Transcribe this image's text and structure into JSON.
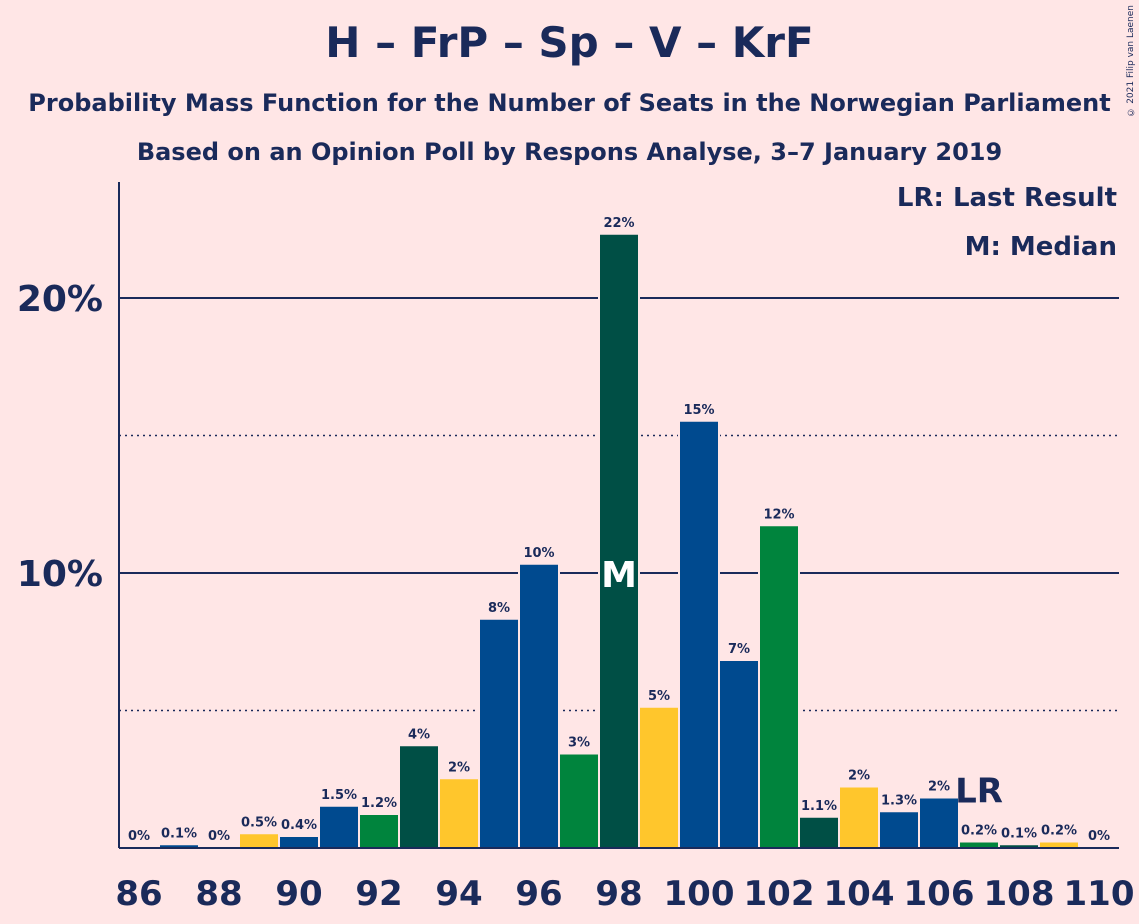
{
  "header": {
    "title": "H – FrP – Sp – V – KrF",
    "subtitle1": "Probability Mass Function for the Number of Seats in the Norwegian Parliament",
    "subtitle2": "Based on an Opinion Poll by Respons Analyse, 3–7 January 2019"
  },
  "legend": {
    "last_result": "LR: Last Result",
    "median": "M: Median"
  },
  "copyright": "© 2021 Filip van Laenen",
  "chart_data": {
    "type": "bar",
    "x": [
      86,
      87,
      88,
      89,
      90,
      91,
      92,
      93,
      94,
      95,
      96,
      97,
      98,
      99,
      100,
      101,
      102,
      103,
      104,
      105,
      106,
      107,
      108,
      109,
      110
    ],
    "values": [
      0,
      0.1,
      0,
      0.5,
      0.4,
      1.5,
      1.2,
      3.7,
      2.5,
      8.3,
      10.3,
      3.4,
      22.3,
      5.1,
      15.5,
      6.8,
      11.7,
      1.1,
      2.2,
      1.3,
      1.8,
      0.2,
      0.1,
      0.2,
      0
    ],
    "labels": [
      "0%",
      "0.1%",
      "0%",
      "0.5%",
      "0.4%",
      "1.5%",
      "1.2%",
      "4%",
      "2%",
      "8%",
      "10%",
      "3%",
      "22%",
      "5%",
      "15%",
      "7%",
      "12%",
      "1.1%",
      "2%",
      "1.3%",
      "2%",
      "0.2%",
      "0.1%",
      "0.2%",
      "0%"
    ],
    "colors": [
      "#004A8F",
      "#004A8F",
      "#00843D",
      "#FFC62C",
      "#004A8F",
      "#004A8F",
      "#00843D",
      "#004F45",
      "#FFC62C",
      "#004A8F",
      "#004A8F",
      "#00843D",
      "#004F45",
      "#FFC62C",
      "#004A8F",
      "#004A8F",
      "#00843D",
      "#004F45",
      "#FFC62C",
      "#004A8F",
      "#004A8F",
      "#00843D",
      "#004F45",
      "#FFC62C",
      "#004A8F"
    ],
    "x_tick_labels": [
      "86",
      "88",
      "90",
      "92",
      "94",
      "96",
      "98",
      "100",
      "102",
      "104",
      "106",
      "108",
      "110"
    ],
    "y_tick_labels": [
      "10%",
      "20%"
    ],
    "ylim": [
      0,
      24
    ],
    "solid_gridlines": [
      10,
      20
    ],
    "dotted_gridlines": [
      5,
      15
    ],
    "median": {
      "seat": 98,
      "label": "M"
    },
    "last_result": {
      "seat": 107,
      "label": "LR"
    },
    "grid": true,
    "legend_position": "top-right"
  }
}
